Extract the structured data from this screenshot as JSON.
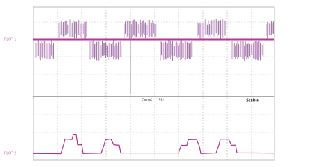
{
  "top_panel": {
    "label": "PLOT 1"
  },
  "bottom_panel": {
    "label": "PLOT 2"
  },
  "cursor_readout": "Zoom2 : 1.251",
  "status": "Stable"
}
